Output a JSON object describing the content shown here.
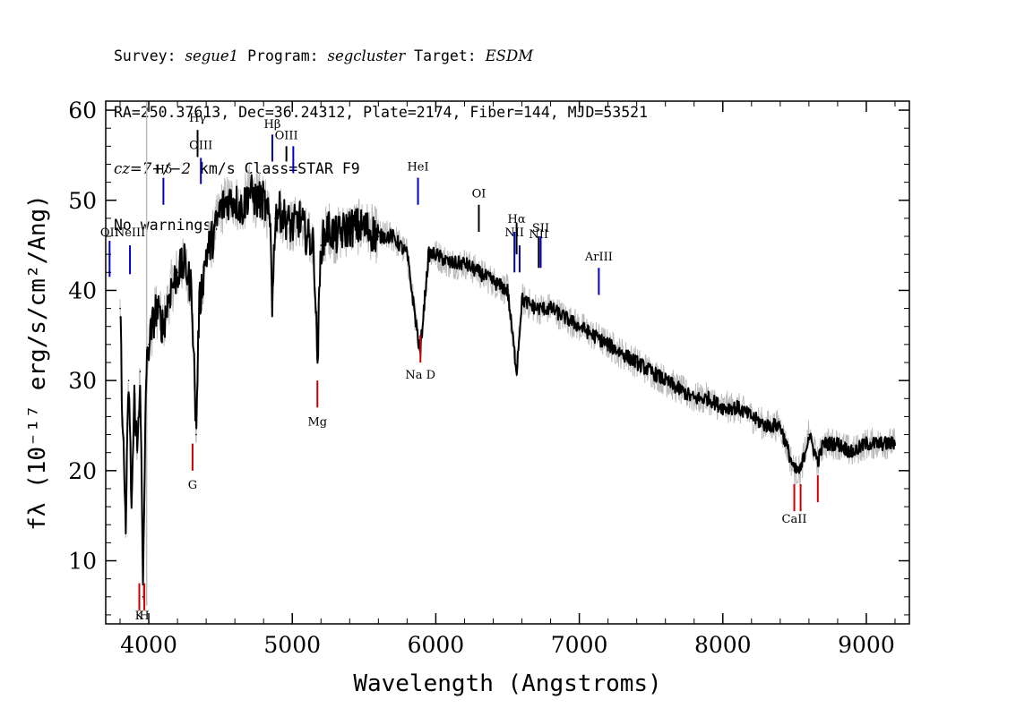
{
  "header": {
    "line1": {
      "survey_label": "Survey: ",
      "survey": "segue1",
      "program_label": " Program: ",
      "program": "segcluster",
      "target_label": " Target: ",
      "target": "ESDM"
    },
    "line2": "RA=250.37613, Dec=36.24312, Plate=2174, Fiber=144, MJD=53521",
    "line3": {
      "cz_label": "cz=7+/−2",
      "rest": " km/s Class=STAR F9"
    },
    "line4": "No warnings."
  },
  "chart_data": {
    "type": "line",
    "title": "",
    "xlabel": "Wavelength (Angstroms)",
    "ylabel": "fλ (10⁻¹⁷ erg/s/cm²/Ang)",
    "xlim": [
      3700,
      9300
    ],
    "ylim": [
      3,
      61
    ],
    "xticks": [
      4000,
      5000,
      6000,
      7000,
      8000,
      9000
    ],
    "yticks": [
      10,
      20,
      30,
      40,
      50,
      60
    ],
    "series": [
      {
        "color": "#000000",
        "x": [
          3800,
          3820,
          3840,
          3860,
          3880,
          3900,
          3920,
          3940,
          3960,
          3980,
          4000,
          4050,
          4100,
          4150,
          4200,
          4250,
          4300,
          4330,
          4350,
          4400,
          4450,
          4500,
          4550,
          4600,
          4650,
          4700,
          4750,
          4800,
          4850,
          4861,
          4880,
          4900,
          4950,
          5000,
          5050,
          5100,
          5150,
          5175,
          5200,
          5250,
          5300,
          5400,
          5500,
          5600,
          5700,
          5800,
          5890,
          5950,
          6000,
          6100,
          6200,
          6300,
          6400,
          6500,
          6563,
          6600,
          6700,
          6800,
          6900,
          7000,
          7100,
          7200,
          7300,
          7400,
          7500,
          7600,
          7700,
          7800,
          7900,
          8000,
          8100,
          8200,
          8300,
          8400,
          8498,
          8542,
          8600,
          8662,
          8700,
          8800,
          8900,
          9000,
          9100,
          9200
        ],
        "y": [
          38,
          24,
          14,
          30,
          16,
          28,
          22,
          31,
          6,
          30,
          34,
          38,
          36,
          40,
          42,
          43,
          40,
          24,
          38,
          44,
          46,
          49,
          50,
          50,
          49,
          51,
          50,
          50,
          47,
          38,
          48,
          49,
          48,
          47,
          48,
          46,
          45,
          32,
          45,
          47,
          46,
          47,
          47,
          46,
          46,
          44,
          33,
          44,
          44,
          43,
          43,
          42,
          41,
          40,
          31,
          39,
          38,
          38,
          37,
          36,
          35,
          34,
          33,
          32,
          31,
          30,
          29,
          28,
          28,
          27,
          27,
          26,
          25,
          25,
          20,
          20,
          24,
          21,
          23,
          23,
          22,
          23,
          23,
          23
        ]
      },
      {
        "color": "#bbbbbb",
        "x": [
          3800,
          3900,
          3985,
          4000,
          4500,
          5500,
          6500,
          7500,
          8500,
          9200
        ],
        "y": [
          40,
          32,
          61,
          34,
          52,
          49,
          44,
          33,
          28,
          25
        ]
      }
    ],
    "line_markers": [
      {
        "label": "OII",
        "x": 3727,
        "y_top": 45.5,
        "y_bottom": 41.5,
        "color": "#0000cc",
        "label_y": 46.0
      },
      {
        "label": "NeIII",
        "x": 3869,
        "y_top": 45.0,
        "y_bottom": 41.8,
        "color": "#0000cc",
        "label_y": 46.0
      },
      {
        "label": "Hδ",
        "x": 4102,
        "y_top": 52.5,
        "y_bottom": 49.5,
        "color": "#0000cc",
        "label_y": 53.0
      },
      {
        "label": "Hγ",
        "x": 4340,
        "y_top": 57.8,
        "y_bottom": 54.8,
        "color": "#000000",
        "label_y": 58.7
      },
      {
        "label": "OIII",
        "x": 4363,
        "y_top": 54.7,
        "y_bottom": 51.8,
        "color": "#0000cc",
        "label_y": 55.7
      },
      {
        "label": "Hβ",
        "x": 4861,
        "y_top": 57.3,
        "y_bottom": 54.3,
        "color": "#0000cc",
        "label_y": 58.0
      },
      {
        "label": "OIII",
        "x": 4959,
        "y_top": 56.0,
        "y_bottom": 54.3,
        "color": "#000000",
        "label_y": 56.8
      },
      {
        "label": "",
        "x": 5007,
        "y_top": 56.0,
        "y_bottom": 53.0,
        "color": "#0000cc",
        "label_y": 56.8
      },
      {
        "label": "HeI",
        "x": 5876,
        "y_top": 52.5,
        "y_bottom": 49.5,
        "color": "#0000cc",
        "label_y": 53.3
      },
      {
        "label": "OI",
        "x": 6300,
        "y_top": 49.5,
        "y_bottom": 46.5,
        "color": "#000000",
        "label_y": 50.3
      },
      {
        "label": "NII",
        "x": 6548,
        "y_top": 46.5,
        "y_bottom": 42.0,
        "color": "#0000cc",
        "label_y": 46.0
      },
      {
        "label": "Hα",
        "x": 6563,
        "y_top": 47.5,
        "y_bottom": 44.0,
        "color": "#000000",
        "label_y": 47.5
      },
      {
        "label": "",
        "x": 6584,
        "y_top": 45.0,
        "y_bottom": 42.0,
        "color": "#0000cc",
        "label_y": 45.0
      },
      {
        "label": "NII",
        "x": 6717,
        "y_top": 46.0,
        "y_bottom": 42.5,
        "color": "#000000",
        "label_y": 45.8
      },
      {
        "label": "SII",
        "x": 6731,
        "y_top": 46.0,
        "y_bottom": 42.5,
        "color": "#0000cc",
        "label_y": 46.5
      },
      {
        "label": "ArIII",
        "x": 7136,
        "y_top": 42.5,
        "y_bottom": 39.5,
        "color": "#0000cc",
        "label_y": 43.3
      },
      {
        "label": "K",
        "x": 3934,
        "y_top": 7.5,
        "y_bottom": 4.5,
        "color": "#cc0000",
        "label_y": 3.5
      },
      {
        "label": "H",
        "x": 3969,
        "y_top": 7.5,
        "y_bottom": 4.5,
        "color": "#cc0000",
        "label_y": 3.5
      },
      {
        "label": "G",
        "x": 4305,
        "y_top": 23.0,
        "y_bottom": 20.0,
        "color": "#cc0000",
        "label_y": 18.0
      },
      {
        "label": "Mg",
        "x": 5175,
        "y_top": 30.0,
        "y_bottom": 27.0,
        "color": "#cc0000",
        "label_y": 25.0
      },
      {
        "label": "Na D",
        "x": 5893,
        "y_top": 35.0,
        "y_bottom": 32.0,
        "color": "#cc0000",
        "label_y": 30.2
      },
      {
        "label": "CaII",
        "x": 8498,
        "y_top": 18.5,
        "y_bottom": 15.5,
        "color": "#cc0000",
        "label_y": 14.2
      },
      {
        "label": "",
        "x": 8542,
        "y_top": 18.5,
        "y_bottom": 15.5,
        "color": "#cc0000",
        "label_y": 14.2
      },
      {
        "label": "",
        "x": 8662,
        "y_top": 19.5,
        "y_bottom": 16.5,
        "color": "#cc0000",
        "label_y": 14.2
      }
    ]
  }
}
